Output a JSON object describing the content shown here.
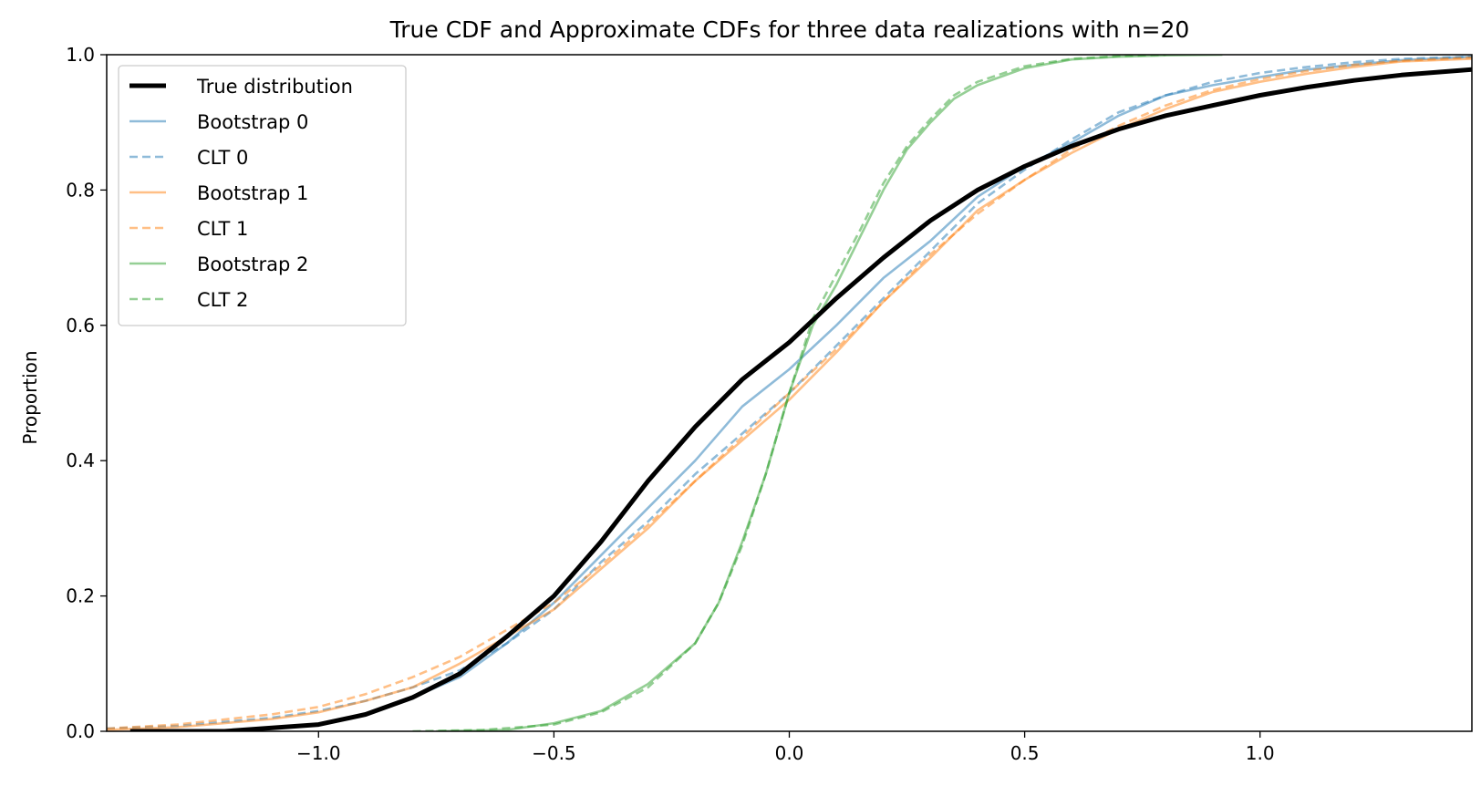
{
  "chart_data": {
    "type": "line",
    "title": "True CDF and Approximate CDFs for three data realizations with n=20",
    "xlabel": "",
    "ylabel": "Proportion",
    "xlim": [
      -1.45,
      1.45
    ],
    "ylim": [
      0.0,
      1.0
    ],
    "x_ticks": [
      -1.0,
      -0.5,
      0.0,
      0.5,
      1.0
    ],
    "x_tick_labels": [
      "−1.0",
      "−0.5",
      "0.0",
      "0.5",
      "1.0"
    ],
    "y_ticks": [
      0.0,
      0.2,
      0.4,
      0.6,
      0.8,
      1.0
    ],
    "y_tick_labels": [
      "0.0",
      "0.2",
      "0.4",
      "0.6",
      "0.8",
      "1.0"
    ],
    "grid": false,
    "legend_position": "top-left",
    "series": [
      {
        "name": "True distribution",
        "color": "#000000",
        "style": "solid",
        "points": [
          [
            -1.4,
            0.0
          ],
          [
            -1.2,
            0.0
          ],
          [
            -1.0,
            0.01
          ],
          [
            -0.9,
            0.025
          ],
          [
            -0.8,
            0.05
          ],
          [
            -0.7,
            0.085
          ],
          [
            -0.6,
            0.14
          ],
          [
            -0.5,
            0.2
          ],
          [
            -0.4,
            0.28
          ],
          [
            -0.3,
            0.37
          ],
          [
            -0.2,
            0.45
          ],
          [
            -0.1,
            0.52
          ],
          [
            0.0,
            0.575
          ],
          [
            0.1,
            0.64
          ],
          [
            0.2,
            0.7
          ],
          [
            0.3,
            0.755
          ],
          [
            0.4,
            0.8
          ],
          [
            0.5,
            0.835
          ],
          [
            0.6,
            0.865
          ],
          [
            0.7,
            0.89
          ],
          [
            0.8,
            0.91
          ],
          [
            0.9,
            0.925
          ],
          [
            1.0,
            0.94
          ],
          [
            1.1,
            0.952
          ],
          [
            1.2,
            0.962
          ],
          [
            1.3,
            0.97
          ],
          [
            1.45,
            0.978
          ]
        ]
      },
      {
        "name": "Bootstrap 0",
        "color": "#1f77b4",
        "style": "solid",
        "points": [
          [
            -1.4,
            0.0
          ],
          [
            -1.2,
            0.001
          ],
          [
            -1.0,
            0.01
          ],
          [
            -0.9,
            0.025
          ],
          [
            -0.8,
            0.05
          ],
          [
            -0.7,
            0.08
          ],
          [
            -0.6,
            0.13
          ],
          [
            -0.5,
            0.19
          ],
          [
            -0.4,
            0.26
          ],
          [
            -0.3,
            0.33
          ],
          [
            -0.2,
            0.4
          ],
          [
            -0.1,
            0.48
          ],
          [
            0.0,
            0.535
          ],
          [
            0.1,
            0.6
          ],
          [
            0.2,
            0.67
          ],
          [
            0.3,
            0.725
          ],
          [
            0.4,
            0.79
          ],
          [
            0.5,
            0.835
          ],
          [
            0.6,
            0.87
          ],
          [
            0.7,
            0.91
          ],
          [
            0.8,
            0.94
          ],
          [
            0.9,
            0.955
          ],
          [
            1.0,
            0.967
          ],
          [
            1.1,
            0.978
          ],
          [
            1.2,
            0.985
          ],
          [
            1.3,
            0.992
          ],
          [
            1.45,
            0.997
          ]
        ]
      },
      {
        "name": "CLT 0",
        "color": "#1f77b4",
        "style": "dashed",
        "points": [
          [
            -1.45,
            0.004
          ],
          [
            -1.3,
            0.008
          ],
          [
            -1.1,
            0.02
          ],
          [
            -1.0,
            0.03
          ],
          [
            -0.9,
            0.045
          ],
          [
            -0.8,
            0.065
          ],
          [
            -0.7,
            0.09
          ],
          [
            -0.6,
            0.13
          ],
          [
            -0.5,
            0.18
          ],
          [
            -0.4,
            0.25
          ],
          [
            -0.3,
            0.31
          ],
          [
            -0.2,
            0.38
          ],
          [
            -0.1,
            0.44
          ],
          [
            0.0,
            0.5
          ],
          [
            0.1,
            0.57
          ],
          [
            0.2,
            0.64
          ],
          [
            0.3,
            0.71
          ],
          [
            0.4,
            0.78
          ],
          [
            0.5,
            0.83
          ],
          [
            0.6,
            0.875
          ],
          [
            0.7,
            0.915
          ],
          [
            0.8,
            0.94
          ],
          [
            0.9,
            0.96
          ],
          [
            1.0,
            0.973
          ],
          [
            1.1,
            0.982
          ],
          [
            1.2,
            0.989
          ],
          [
            1.3,
            0.994
          ],
          [
            1.45,
            0.997
          ]
        ]
      },
      {
        "name": "Bootstrap 1",
        "color": "#ff7f0e",
        "style": "solid",
        "points": [
          [
            -1.45,
            0.002
          ],
          [
            -1.3,
            0.006
          ],
          [
            -1.1,
            0.018
          ],
          [
            -1.0,
            0.028
          ],
          [
            -0.9,
            0.045
          ],
          [
            -0.8,
            0.065
          ],
          [
            -0.7,
            0.1
          ],
          [
            -0.6,
            0.14
          ],
          [
            -0.5,
            0.18
          ],
          [
            -0.4,
            0.24
          ],
          [
            -0.3,
            0.3
          ],
          [
            -0.2,
            0.37
          ],
          [
            -0.1,
            0.43
          ],
          [
            0.0,
            0.49
          ],
          [
            0.1,
            0.56
          ],
          [
            0.2,
            0.635
          ],
          [
            0.3,
            0.7
          ],
          [
            0.4,
            0.77
          ],
          [
            0.5,
            0.815
          ],
          [
            0.6,
            0.855
          ],
          [
            0.7,
            0.89
          ],
          [
            0.8,
            0.92
          ],
          [
            0.9,
            0.945
          ],
          [
            1.0,
            0.96
          ],
          [
            1.1,
            0.972
          ],
          [
            1.2,
            0.982
          ],
          [
            1.3,
            0.99
          ],
          [
            1.45,
            0.994
          ]
        ]
      },
      {
        "name": "CLT 1",
        "color": "#ff7f0e",
        "style": "dashed",
        "points": [
          [
            -1.45,
            0.004
          ],
          [
            -1.3,
            0.01
          ],
          [
            -1.1,
            0.025
          ],
          [
            -1.0,
            0.036
          ],
          [
            -0.9,
            0.055
          ],
          [
            -0.8,
            0.08
          ],
          [
            -0.7,
            0.11
          ],
          [
            -0.6,
            0.15
          ],
          [
            -0.5,
            0.19
          ],
          [
            -0.4,
            0.245
          ],
          [
            -0.3,
            0.305
          ],
          [
            -0.2,
            0.37
          ],
          [
            -0.1,
            0.435
          ],
          [
            0.0,
            0.5
          ],
          [
            0.1,
            0.565
          ],
          [
            0.2,
            0.635
          ],
          [
            0.3,
            0.705
          ],
          [
            0.4,
            0.765
          ],
          [
            0.5,
            0.815
          ],
          [
            0.6,
            0.86
          ],
          [
            0.7,
            0.895
          ],
          [
            0.8,
            0.925
          ],
          [
            0.9,
            0.948
          ],
          [
            1.0,
            0.964
          ],
          [
            1.1,
            0.976
          ],
          [
            1.2,
            0.985
          ],
          [
            1.3,
            0.991
          ],
          [
            1.45,
            0.996
          ]
        ]
      },
      {
        "name": "Bootstrap 2",
        "color": "#2ca02c",
        "style": "solid",
        "points": [
          [
            -0.75,
            0.0
          ],
          [
            -0.6,
            0.002
          ],
          [
            -0.5,
            0.012
          ],
          [
            -0.4,
            0.03
          ],
          [
            -0.3,
            0.07
          ],
          [
            -0.2,
            0.13
          ],
          [
            -0.15,
            0.19
          ],
          [
            -0.1,
            0.28
          ],
          [
            -0.05,
            0.38
          ],
          [
            0.0,
            0.5
          ],
          [
            0.05,
            0.6
          ],
          [
            0.1,
            0.66
          ],
          [
            0.15,
            0.73
          ],
          [
            0.2,
            0.8
          ],
          [
            0.25,
            0.86
          ],
          [
            0.3,
            0.9
          ],
          [
            0.35,
            0.935
          ],
          [
            0.4,
            0.955
          ],
          [
            0.5,
            0.98
          ],
          [
            0.6,
            0.993
          ],
          [
            0.7,
            0.997
          ],
          [
            0.8,
            0.999
          ],
          [
            0.92,
            1.0
          ]
        ]
      },
      {
        "name": "CLT 2",
        "color": "#2ca02c",
        "style": "dashed",
        "points": [
          [
            -0.8,
            0.0
          ],
          [
            -0.65,
            0.002
          ],
          [
            -0.5,
            0.01
          ],
          [
            -0.4,
            0.028
          ],
          [
            -0.3,
            0.065
          ],
          [
            -0.2,
            0.13
          ],
          [
            -0.15,
            0.19
          ],
          [
            -0.1,
            0.275
          ],
          [
            -0.05,
            0.38
          ],
          [
            0.0,
            0.5
          ],
          [
            0.05,
            0.61
          ],
          [
            0.1,
            0.675
          ],
          [
            0.15,
            0.74
          ],
          [
            0.2,
            0.81
          ],
          [
            0.25,
            0.865
          ],
          [
            0.3,
            0.905
          ],
          [
            0.35,
            0.94
          ],
          [
            0.4,
            0.96
          ],
          [
            0.5,
            0.983
          ],
          [
            0.6,
            0.994
          ],
          [
            0.7,
            0.998
          ],
          [
            0.8,
            1.0
          ]
        ]
      }
    ]
  }
}
